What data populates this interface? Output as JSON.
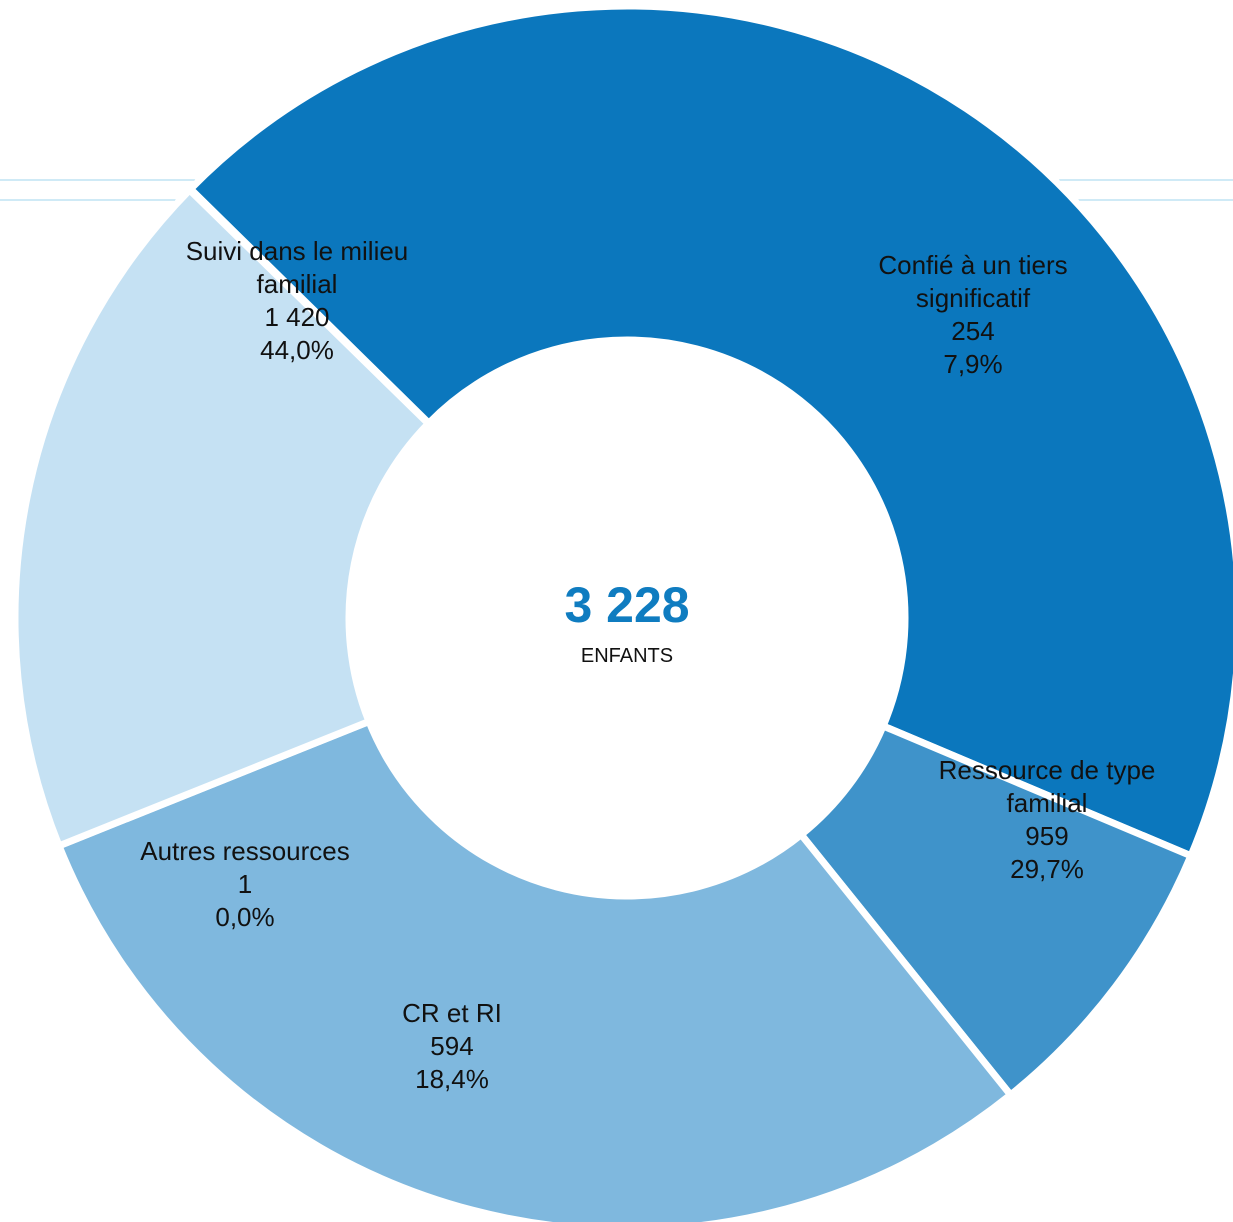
{
  "chart_data": {
    "type": "pie",
    "donut": true,
    "center_total": "3 228",
    "center_label": "ENFANTS",
    "colors": {
      "total_text": "#0f7cc0",
      "guide_line": "#9fd6ee"
    },
    "slices": [
      {
        "label_lines": [
          "Suivi dans le milieu",
          "familial"
        ],
        "value_text": "1 420",
        "percent_text": "44,0%",
        "value": 1420,
        "color": "#0b77bd"
      },
      {
        "label_lines": [
          "Confié à un tiers",
          "significatif"
        ],
        "value_text": "254",
        "percent_text": "7,9%",
        "value": 254,
        "color": "#3f93ca"
      },
      {
        "label_lines": [
          "Ressource de type",
          "familial"
        ],
        "value_text": "959",
        "percent_text": "29,7%",
        "value": 959,
        "color": "#7fb8de"
      },
      {
        "label_lines": [
          "CR et RI"
        ],
        "value_text": "594",
        "percent_text": "18,4%",
        "value": 594,
        "color": "#c5e1f3"
      },
      {
        "label_lines": [
          "Autres ressources"
        ],
        "value_text": "1",
        "percent_text": "0,0%",
        "value": 1,
        "color": "#d6eaf7"
      }
    ]
  }
}
